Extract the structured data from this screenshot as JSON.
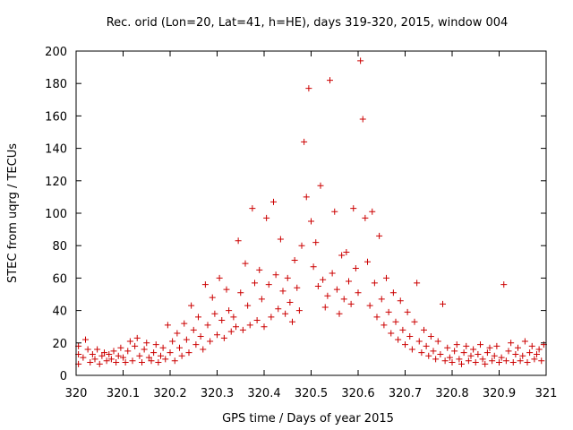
{
  "chart_data": {
    "type": "scatter",
    "title": "Rec. orid (Lon=20, Lat=41, h=HE), days 319-320, 2015, window 004",
    "xlabel": "GPS time / Days of year 2015",
    "ylabel": "STEC from uqrg / TECUs",
    "xlim": [
      320,
      321
    ],
    "ylim": [
      0,
      200
    ],
    "xticks": [
      "320",
      "320.1",
      "320.2",
      "320.3",
      "320.4",
      "320.5",
      "320.6",
      "320.7",
      "320.8",
      "320.9",
      "321"
    ],
    "yticks": [
      "0",
      "20",
      "40",
      "60",
      "80",
      "100",
      "120",
      "140",
      "160",
      "180",
      "200"
    ],
    "grid": false,
    "legend": "none",
    "marker": "plus",
    "color": "#cc0000",
    "series": [
      {
        "points": [
          [
            320.005,
            7
          ],
          [
            320.005,
            13
          ],
          [
            320.005,
            18
          ],
          [
            320.015,
            11
          ],
          [
            320.02,
            22
          ],
          [
            320.025,
            16
          ],
          [
            320.03,
            8
          ],
          [
            320.035,
            13
          ],
          [
            320.04,
            10
          ],
          [
            320.045,
            16
          ],
          [
            320.05,
            7
          ],
          [
            320.055,
            12
          ],
          [
            320.06,
            14
          ],
          [
            320.065,
            9
          ],
          [
            320.07,
            13
          ],
          [
            320.075,
            10
          ],
          [
            320.08,
            15
          ],
          [
            320.085,
            8
          ],
          [
            320.09,
            12
          ],
          [
            320.095,
            17
          ],
          [
            320.1,
            11
          ],
          [
            320.105,
            8
          ],
          [
            320.11,
            15
          ],
          [
            320.115,
            21
          ],
          [
            320.12,
            9
          ],
          [
            320.125,
            18
          ],
          [
            320.13,
            23
          ],
          [
            320.135,
            12
          ],
          [
            320.14,
            8
          ],
          [
            320.145,
            16
          ],
          [
            320.15,
            20
          ],
          [
            320.155,
            11
          ],
          [
            320.16,
            9
          ],
          [
            320.165,
            14
          ],
          [
            320.17,
            19
          ],
          [
            320.175,
            8
          ],
          [
            320.18,
            12
          ],
          [
            320.185,
            17
          ],
          [
            320.19,
            10
          ],
          [
            320.195,
            31
          ],
          [
            320.2,
            14
          ],
          [
            320.205,
            21
          ],
          [
            320.21,
            9
          ],
          [
            320.215,
            26
          ],
          [
            320.22,
            17
          ],
          [
            320.225,
            12
          ],
          [
            320.23,
            32
          ],
          [
            320.235,
            22
          ],
          [
            320.24,
            14
          ],
          [
            320.245,
            43
          ],
          [
            320.25,
            28
          ],
          [
            320.255,
            19
          ],
          [
            320.26,
            36
          ],
          [
            320.265,
            24
          ],
          [
            320.27,
            16
          ],
          [
            320.275,
            56
          ],
          [
            320.28,
            31
          ],
          [
            320.285,
            21
          ],
          [
            320.29,
            48
          ],
          [
            320.295,
            38
          ],
          [
            320.3,
            25
          ],
          [
            320.305,
            60
          ],
          [
            320.31,
            34
          ],
          [
            320.315,
            23
          ],
          [
            320.32,
            53
          ],
          [
            320.325,
            40
          ],
          [
            320.33,
            27
          ],
          [
            320.335,
            36
          ],
          [
            320.34,
            30
          ],
          [
            320.345,
            83
          ],
          [
            320.35,
            51
          ],
          [
            320.355,
            28
          ],
          [
            320.36,
            69
          ],
          [
            320.365,
            43
          ],
          [
            320.37,
            31
          ],
          [
            320.375,
            103
          ],
          [
            320.38,
            57
          ],
          [
            320.385,
            34
          ],
          [
            320.39,
            65
          ],
          [
            320.395,
            47
          ],
          [
            320.4,
            30
          ],
          [
            320.405,
            97
          ],
          [
            320.41,
            56
          ],
          [
            320.415,
            36
          ],
          [
            320.42,
            107
          ],
          [
            320.425,
            62
          ],
          [
            320.43,
            41
          ],
          [
            320.435,
            84
          ],
          [
            320.44,
            52
          ],
          [
            320.445,
            38
          ],
          [
            320.45,
            60
          ],
          [
            320.455,
            45
          ],
          [
            320.46,
            33
          ],
          [
            320.465,
            71
          ],
          [
            320.47,
            54
          ],
          [
            320.475,
            40
          ],
          [
            320.48,
            80
          ],
          [
            320.485,
            144
          ],
          [
            320.49,
            110
          ],
          [
            320.495,
            177
          ],
          [
            320.5,
            95
          ],
          [
            320.505,
            67
          ],
          [
            320.51,
            82
          ],
          [
            320.515,
            55
          ],
          [
            320.52,
            117
          ],
          [
            320.525,
            59
          ],
          [
            320.53,
            42
          ],
          [
            320.535,
            49
          ],
          [
            320.54,
            182
          ],
          [
            320.545,
            63
          ],
          [
            320.55,
            101
          ],
          [
            320.555,
            53
          ],
          [
            320.56,
            38
          ],
          [
            320.565,
            74
          ],
          [
            320.57,
            47
          ],
          [
            320.575,
            76
          ],
          [
            320.58,
            58
          ],
          [
            320.585,
            44
          ],
          [
            320.59,
            103
          ],
          [
            320.595,
            66
          ],
          [
            320.6,
            51
          ],
          [
            320.605,
            194
          ],
          [
            320.61,
            158
          ],
          [
            320.615,
            97
          ],
          [
            320.62,
            70
          ],
          [
            320.625,
            43
          ],
          [
            320.63,
            101
          ],
          [
            320.635,
            57
          ],
          [
            320.64,
            36
          ],
          [
            320.645,
            86
          ],
          [
            320.65,
            47
          ],
          [
            320.655,
            31
          ],
          [
            320.66,
            60
          ],
          [
            320.665,
            39
          ],
          [
            320.67,
            26
          ],
          [
            320.675,
            51
          ],
          [
            320.68,
            33
          ],
          [
            320.685,
            22
          ],
          [
            320.69,
            46
          ],
          [
            320.695,
            28
          ],
          [
            320.7,
            19
          ],
          [
            320.705,
            39
          ],
          [
            320.71,
            24
          ],
          [
            320.715,
            16
          ],
          [
            320.72,
            33
          ],
          [
            320.725,
            57
          ],
          [
            320.73,
            21
          ],
          [
            320.735,
            14
          ],
          [
            320.74,
            28
          ],
          [
            320.745,
            18
          ],
          [
            320.75,
            12
          ],
          [
            320.755,
            24
          ],
          [
            320.76,
            15
          ],
          [
            320.765,
            10
          ],
          [
            320.77,
            21
          ],
          [
            320.775,
            13
          ],
          [
            320.78,
            44
          ],
          [
            320.785,
            9
          ],
          [
            320.79,
            17
          ],
          [
            320.795,
            11
          ],
          [
            320.8,
            8
          ],
          [
            320.805,
            15
          ],
          [
            320.81,
            19
          ],
          [
            320.815,
            10
          ],
          [
            320.82,
            7
          ],
          [
            320.825,
            14
          ],
          [
            320.83,
            18
          ],
          [
            320.835,
            9
          ],
          [
            320.84,
            12
          ],
          [
            320.845,
            16
          ],
          [
            320.85,
            8
          ],
          [
            320.855,
            13
          ],
          [
            320.86,
            19
          ],
          [
            320.865,
            10
          ],
          [
            320.87,
            7
          ],
          [
            320.875,
            14
          ],
          [
            320.88,
            17
          ],
          [
            320.885,
            9
          ],
          [
            320.89,
            12
          ],
          [
            320.895,
            18
          ],
          [
            320.9,
            8
          ],
          [
            320.905,
            11
          ],
          [
            320.91,
            56
          ],
          [
            320.915,
            9
          ],
          [
            320.92,
            15
          ],
          [
            320.925,
            20
          ],
          [
            320.93,
            8
          ],
          [
            320.935,
            13
          ],
          [
            320.94,
            17
          ],
          [
            320.945,
            9
          ],
          [
            320.95,
            12
          ],
          [
            320.955,
            21
          ],
          [
            320.96,
            8
          ],
          [
            320.965,
            14
          ],
          [
            320.97,
            18
          ],
          [
            320.975,
            10
          ],
          [
            320.98,
            13
          ],
          [
            320.985,
            16
          ],
          [
            320.99,
            9
          ],
          [
            320.995,
            19
          ]
        ]
      }
    ]
  }
}
